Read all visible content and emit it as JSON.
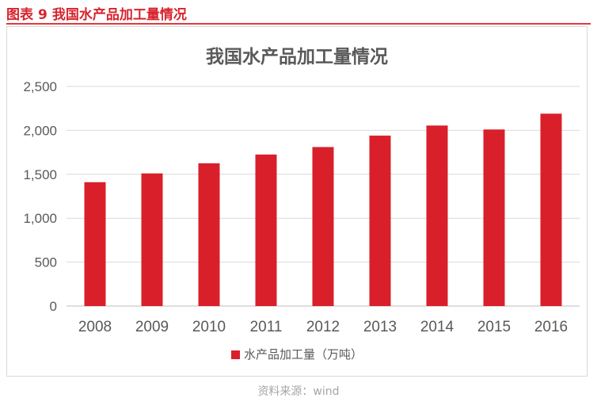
{
  "caption": {
    "prefix": "图表",
    "number": "9",
    "title": "我国水产品加工量情况"
  },
  "source": "资料来源：wind",
  "colors": {
    "bar": "#d9202a",
    "caption": "#d7232e"
  },
  "chart_data": {
    "type": "bar",
    "title": "我国水产品加工量情况",
    "categories": [
      "2008",
      "2009",
      "2010",
      "2011",
      "2012",
      "2013",
      "2014",
      "2015",
      "2016"
    ],
    "series": [
      {
        "name": "水产品加工量（万吨）",
        "values": [
          1410,
          1510,
          1625,
          1725,
          1810,
          1940,
          2055,
          2010,
          2190
        ]
      }
    ],
    "ylim": [
      0,
      2500
    ],
    "yticks": [
      0,
      500,
      1000,
      1500,
      2000,
      2500
    ],
    "ytick_labels": [
      "0",
      "500",
      "1,000",
      "1,500",
      "2,000",
      "2,500"
    ],
    "grid": true,
    "legend_position": "bottom"
  }
}
